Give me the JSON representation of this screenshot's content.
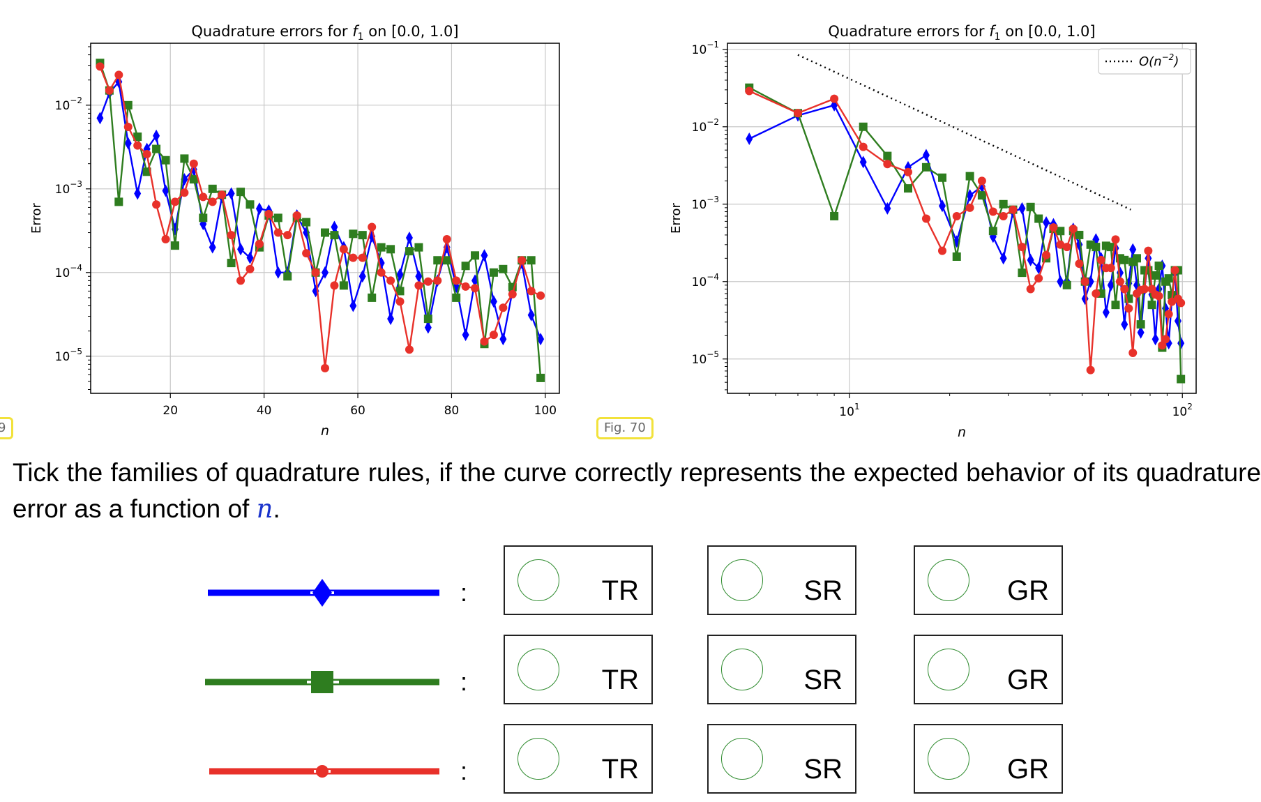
{
  "labels": {
    "fig_left": "9",
    "fig_right": "Fig. 70"
  },
  "question": {
    "text_before": "Tick the families of quadrature rules, if the curve correctly represents the expected behavior of its quadrature error as a function of ",
    "variable": "n",
    "text_after": "."
  },
  "rows": [
    {
      "color": "#0000ff",
      "marker": "diamond",
      "colon": ":",
      "options": [
        "TR",
        "SR",
        "GR"
      ]
    },
    {
      "color": "#2e7d1f",
      "marker": "square",
      "colon": ":",
      "options": [
        "TR",
        "SR",
        "GR"
      ]
    },
    {
      "color": "#e8312a",
      "marker": "circle",
      "colon": ":",
      "options": [
        "TR",
        "SR",
        "GR"
      ]
    }
  ],
  "chart_data": [
    {
      "type": "line",
      "title_prefix": "Quadrature errors for ",
      "title_f": "f",
      "title_sub": "1",
      "title_suffix": " on [0.0, 1.0]",
      "xlabel": "n",
      "ylabel": "Error",
      "xscale": "linear",
      "yscale": "log",
      "xlim": [
        3,
        103
      ],
      "ylim": [
        3.6e-06,
        0.055
      ],
      "xticks": [
        20,
        40,
        60,
        80,
        100
      ],
      "yticks": [
        1e-05,
        0.0001,
        0.001,
        0.01
      ],
      "grid": true,
      "legend": null
    },
    {
      "type": "line",
      "title_prefix": "Quadrature errors for ",
      "title_f": "f",
      "title_sub": "1",
      "title_suffix": " on [0.0, 1.0]",
      "xlabel": "n",
      "ylabel": "Error",
      "xscale": "log",
      "yscale": "log",
      "xlim": [
        4.3,
        110
      ],
      "ylim": [
        3.6e-06,
        0.12
      ],
      "xticks": [
        10,
        100
      ],
      "yticks": [
        1e-05,
        0.0001,
        0.001,
        0.01,
        0.1
      ],
      "grid": true,
      "legend": "top-right",
      "reference": {
        "name": "O(n^-2)",
        "x": [
          7,
          70
        ],
        "y": [
          0.085,
          0.00085
        ],
        "style": "dotted"
      }
    }
  ],
  "series": [
    {
      "name": "",
      "color": "#0000ff",
      "marker": "diamond",
      "x": [
        5,
        7,
        9,
        11,
        13,
        15,
        17,
        19,
        21,
        23,
        25,
        27,
        29,
        31,
        33,
        35,
        37,
        39,
        41,
        43,
        45,
        47,
        49,
        51,
        53,
        55,
        57,
        59,
        61,
        63,
        65,
        67,
        69,
        71,
        73,
        75,
        77,
        79,
        81,
        83,
        85,
        87,
        89,
        91,
        93,
        95,
        97,
        99
      ],
      "y": [
        0.007,
        0.014,
        0.019,
        0.0035,
        0.00088,
        0.003,
        0.0043,
        0.00095,
        0.00033,
        0.0013,
        0.0017,
        0.00038,
        0.0002,
        0.0008,
        0.00088,
        0.00019,
        0.00015,
        0.00058,
        0.00055,
        0.0001,
        0.0001,
        0.00048,
        0.0003,
        6e-05,
        0.0001,
        0.00035,
        0.0002,
        4e-05,
        9e-05,
        0.00027,
        0.00013,
        2.8e-05,
        9.5e-05,
        0.00026,
        9e-05,
        2.2e-05,
        8e-05,
        0.0002,
        6.8e-05,
        1.8e-05,
        8e-05,
        0.00016,
        4.5e-05,
        1.6e-05,
        6e-05,
        0.00013,
        3.1e-05,
        1.6e-05
      ]
    },
    {
      "name": "",
      "color": "#2e7d1f",
      "marker": "square",
      "x": [
        5,
        7,
        9,
        11,
        13,
        15,
        17,
        19,
        21,
        23,
        25,
        27,
        29,
        31,
        33,
        35,
        37,
        39,
        41,
        43,
        45,
        47,
        49,
        51,
        53,
        55,
        57,
        59,
        61,
        63,
        65,
        67,
        69,
        71,
        73,
        75,
        77,
        79,
        81,
        83,
        85,
        87,
        89,
        91,
        93,
        95,
        97,
        99
      ],
      "y": [
        0.032,
        0.015,
        0.0007,
        0.01,
        0.0042,
        0.0016,
        0.003,
        0.0022,
        0.00021,
        0.0023,
        0.0013,
        0.00045,
        0.001,
        0.00085,
        0.00013,
        0.00092,
        0.00065,
        0.0002,
        0.00048,
        0.00045,
        9e-05,
        0.00045,
        0.0004,
        0.0001,
        0.0003,
        0.00028,
        7e-05,
        0.00029,
        0.00028,
        5e-05,
        0.0002,
        0.00019,
        6e-05,
        0.00018,
        0.0002,
        2.8e-05,
        0.00014,
        0.00014,
        5e-05,
        0.00012,
        0.00016,
        1.4e-05,
        0.0001,
        0.00011,
        6.7e-05,
        0.00014,
        0.00014,
        5.5e-06
      ]
    },
    {
      "name": "",
      "color": "#e8312a",
      "marker": "circle",
      "x": [
        5,
        7,
        9,
        11,
        13,
        15,
        17,
        19,
        21,
        23,
        25,
        27,
        29,
        31,
        33,
        35,
        37,
        39,
        41,
        43,
        45,
        47,
        49,
        51,
        53,
        55,
        57,
        59,
        61,
        63,
        65,
        67,
        69,
        71,
        73,
        75,
        77,
        79,
        81,
        83,
        85,
        87,
        89,
        91,
        93,
        95,
        97,
        99
      ],
      "y": [
        0.029,
        0.015,
        0.023,
        0.0055,
        0.0033,
        0.0026,
        0.00065,
        0.00025,
        0.0007,
        0.0009,
        0.002,
        0.0008,
        0.0007,
        0.00085,
        0.00028,
        8e-05,
        0.00011,
        0.00022,
        0.0005,
        0.0003,
        0.00028,
        0.00048,
        0.00017,
        0.0001,
        7.2e-06,
        7e-05,
        0.00019,
        0.00015,
        0.00015,
        0.00035,
        0.0001,
        8e-05,
        4.5e-05,
        1.2e-05,
        7e-05,
        7.8e-05,
        8e-05,
        0.00025,
        8e-05,
        6.8e-05,
        6.5e-05,
        1.5e-05,
        1.8e-05,
        3.8e-05,
        5.5e-05,
        0.00014,
        6e-05,
        5.3e-05
      ]
    }
  ]
}
